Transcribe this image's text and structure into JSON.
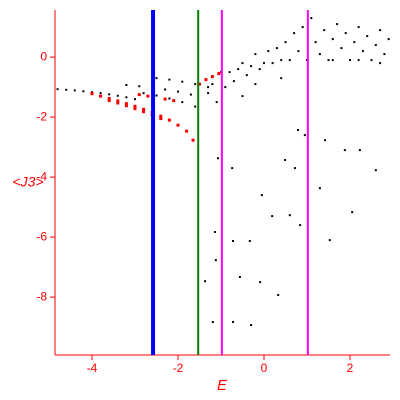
{
  "chart_data": {
    "type": "scatter",
    "xlabel": "E",
    "ylabel": "<J3>",
    "xlim": [
      -4.86,
      2.93
    ],
    "ylim": [
      -9.93,
      1.57
    ],
    "xticks": [
      -4,
      -2,
      0,
      2
    ],
    "yticks": [
      0,
      -2,
      -4,
      -6,
      -8
    ],
    "axis_color": "#ff0000",
    "vlines": [
      {
        "x": -2.58,
        "color": "#0000ff"
      },
      {
        "x": -1.53,
        "color": "#008000"
      },
      {
        "x": -0.98,
        "color": "#ff00ff"
      },
      {
        "x": 1.02,
        "color": "#ff00ff"
      }
    ],
    "series": [
      {
        "color": "#000000",
        "x": [
          -4.8,
          -4.6,
          -4.4,
          -4.2,
          -4.0,
          -3.8,
          -3.6,
          -3.4,
          -3.2,
          -3.0,
          -3.2,
          -2.9,
          -2.6,
          -2.3,
          -2.0,
          -1.7,
          -2.8,
          -2.5,
          -2.2,
          -1.9,
          -1.6,
          -2.5,
          -2.2,
          -1.9,
          -1.6,
          -1.3,
          -1.3,
          -1.2,
          -1.1,
          -1.0,
          -0.9,
          -0.8,
          -0.7,
          -0.6,
          -0.5,
          -0.4,
          -0.3,
          -0.2,
          -0.1,
          0,
          0.1,
          0.2,
          0.3,
          0.4,
          0.5,
          0.6,
          0.7,
          0.8,
          0.9,
          1.0,
          1.1,
          1.2,
          1.3,
          1.4,
          1.5,
          1.6,
          1.7,
          1.8,
          1.9,
          2.0,
          2.1,
          2.2,
          2.3,
          2.4,
          2.5,
          2.6,
          2.7,
          2.8,
          2.9,
          1.6,
          2.2,
          2.7,
          -0.5,
          -0.2,
          0.4,
          -1.14,
          -0.72,
          -0.33,
          -0.56,
          -0.09,
          0.33,
          -1.19,
          -0.72,
          -0.3,
          -1.37,
          -1.12,
          -0.05,
          0.49,
          0.72,
          0.19,
          0.6,
          0.84,
          1.3,
          1.53,
          1.42,
          1.88,
          2.05,
          2.23,
          2.6,
          0.95,
          0.79,
          -0.74,
          -1.07
        ],
        "values": [
          -1.07,
          -1.09,
          -1.11,
          -1.14,
          -1.17,
          -1.2,
          -1.24,
          -1.29,
          -1.34,
          -1.4,
          -0.93,
          -0.97,
          -1.02,
          -1.08,
          -1.15,
          -1.25,
          -1.2,
          -1.28,
          -1.38,
          -1.5,
          -1.65,
          -0.7,
          -0.75,
          -0.82,
          -0.9,
          -1.0,
          -1.2,
          -0.9,
          -1.5,
          -0.5,
          -1.0,
          -0.5,
          -0.8,
          -0.4,
          -0.2,
          -0.6,
          -0.3,
          0.1,
          -0.4,
          -0.2,
          0.2,
          -0.2,
          0.3,
          -0.1,
          0.5,
          -0.1,
          0.8,
          0.2,
          1.0,
          -0.1,
          1.3,
          0.5,
          0.1,
          0.9,
          -0.1,
          0.6,
          1.1,
          0.3,
          0.8,
          -0.1,
          0.5,
          1.0,
          0.2,
          0.7,
          -0.1,
          0.4,
          0.9,
          0.1,
          0.6,
          -0.1,
          -0.1,
          -0.2,
          -1.3,
          -0.9,
          -0.7,
          -5.83,
          -6.13,
          -6.13,
          -7.33,
          -7.5,
          -7.93,
          -8.83,
          -8.83,
          -8.93,
          -7.47,
          -6.77,
          -4.6,
          -3.43,
          -3.7,
          -5.3,
          -5.27,
          -5.6,
          -4.37,
          -6.1,
          -2.77,
          -3.1,
          -5.17,
          -3.1,
          -3.77,
          -2.6,
          -2.43,
          -3.7,
          -3.37
        ]
      },
      {
        "color": "#ff0000",
        "x": [
          -4.0,
          -3.8,
          -3.6,
          -3.4,
          -3.2,
          -3.0,
          -2.8,
          -2.6,
          -2.4,
          -2.2,
          -2.0,
          -1.8,
          -1.65,
          -3.6,
          -3.4,
          -3.2,
          -3.0,
          -2.8,
          -2.6,
          -2.4,
          -2.9,
          -2.7,
          -2.3,
          -2.1,
          -1.5,
          -1.35,
          -1.2,
          -1.05
        ],
        "values": [
          -1.22,
          -1.3,
          -1.38,
          -1.46,
          -1.55,
          -1.64,
          -1.74,
          -1.85,
          -1.97,
          -2.1,
          -2.27,
          -2.47,
          -2.77,
          -1.45,
          -1.53,
          -1.62,
          -1.72,
          -1.82,
          -1.93,
          -2.05,
          -1.25,
          -1.3,
          -1.4,
          -1.45,
          -0.9,
          -0.75,
          -0.65,
          -0.55
        ]
      }
    ]
  }
}
